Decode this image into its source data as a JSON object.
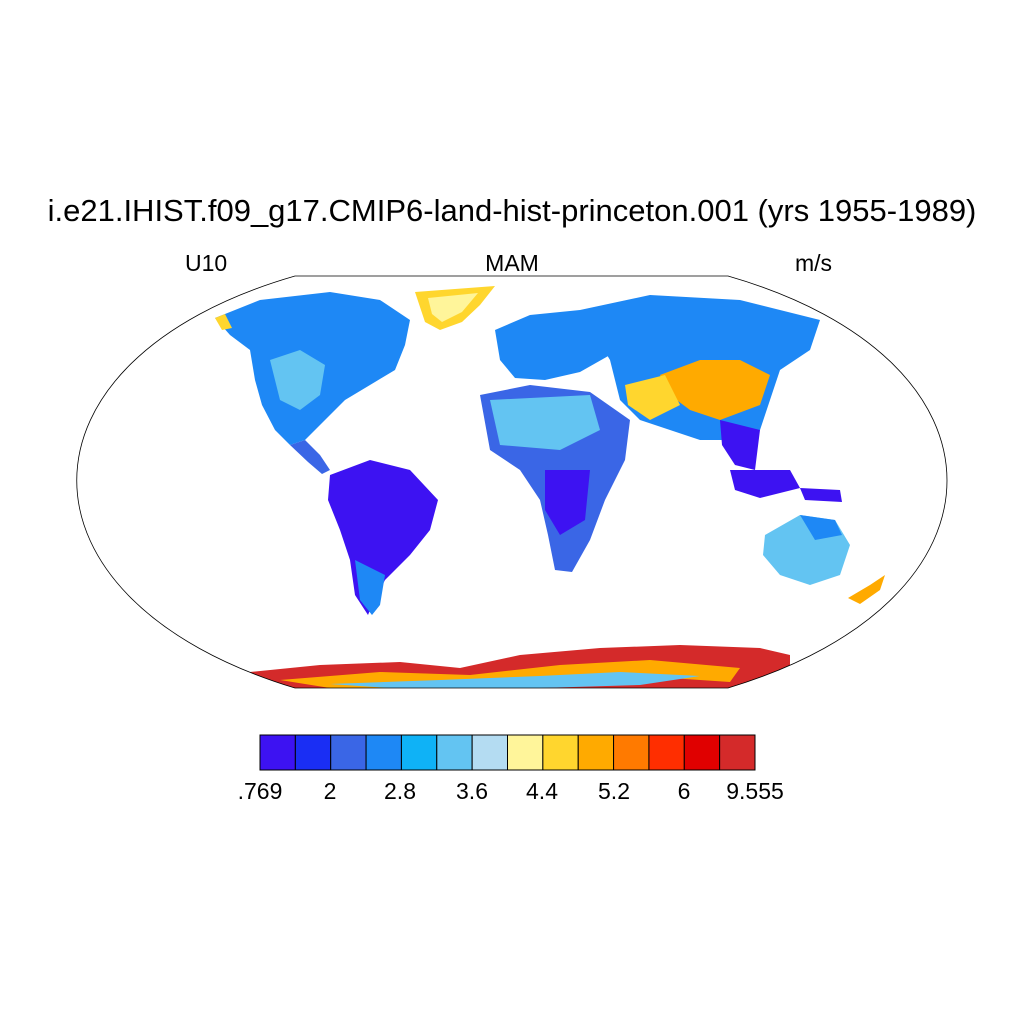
{
  "title": "i.e21.IHIST.f09_g17.CMIP6-land-hist-princeton.001 (yrs 1955-1989)",
  "variable": "U10",
  "season": "MAM",
  "units": "m/s",
  "projection": "robinson",
  "colorbar": {
    "colors": [
      "#3d12f2",
      "#1a2ef4",
      "#3a66e6",
      "#1e88f5",
      "#0fb2f6",
      "#63c4f2",
      "#b4dcf2",
      "#fff59a",
      "#ffd62e",
      "#ffaa00",
      "#ff7a00",
      "#ff2e00",
      "#e00000",
      "#d42a2a"
    ],
    "labels": [
      ".769",
      "2",
      "2.8",
      "3.6",
      "4.4",
      "5.2",
      "6",
      "9.555"
    ]
  }
}
